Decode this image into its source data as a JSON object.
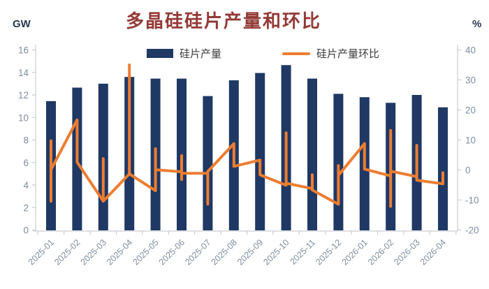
{
  "header": {
    "title": "多晶硅硅片产量和环比",
    "left_unit": "GW",
    "right_unit": "%"
  },
  "legend": {
    "bar_label": "硅片产量",
    "line_label": "硅片产量环比"
  },
  "colors": {
    "bar": "#1F3864",
    "line": "#ED7D31",
    "title": "#933A36",
    "unit_label": "#26374F",
    "legend_text": "#3A3A3A",
    "tick_label": "#7F8DA0",
    "axis_line": "#C9CDD4"
  },
  "chart_data": {
    "type": "bar+line",
    "title": "多晶硅硅片产量和环比",
    "categories": [
      "2025-01",
      "2025-02",
      "2025-03",
      "2025-04",
      "2025-05",
      "2025-06",
      "2025-07",
      "2025-08",
      "2025-09",
      "2025-10",
      "2025-11",
      "2025-12",
      "2026-01",
      "2026-02",
      "2026-03",
      "2026-04"
    ],
    "series": [
      {
        "name": "硅片产量",
        "type": "bar",
        "axis": "left",
        "unit": "GW",
        "values": [
          11.45,
          12.65,
          13.0,
          13.6,
          13.45,
          13.45,
          11.9,
          13.3,
          13.95,
          14.65,
          13.45,
          12.1,
          11.8,
          11.3,
          12.0,
          10.9
        ]
      },
      {
        "name": "硅片产量环比",
        "type": "line",
        "axis": "right",
        "unit": "%",
        "points": [
          [
            1,
            -10.4
          ],
          [
            1,
            9.7
          ],
          [
            1,
            0.1
          ],
          [
            2,
            16.7
          ],
          [
            2,
            2.6
          ],
          [
            3,
            -10.4
          ],
          [
            3,
            3.8
          ],
          [
            3,
            -10.4
          ],
          [
            4,
            -1.3
          ],
          [
            4,
            35.0
          ],
          [
            4,
            -1.3
          ],
          [
            5,
            -6.9
          ],
          [
            5,
            7.1
          ],
          [
            5,
            0.1
          ],
          [
            6,
            -0.6
          ],
          [
            6,
            4.8
          ],
          [
            6,
            -3.2
          ],
          [
            6,
            -1.1
          ],
          [
            7,
            -1.1
          ],
          [
            7,
            -11.4
          ],
          [
            7,
            -0.5
          ],
          [
            8,
            8.8
          ],
          [
            8,
            1.2
          ],
          [
            9,
            3.3
          ],
          [
            9,
            -1.6
          ],
          [
            10,
            -5.1
          ],
          [
            10,
            12.4
          ],
          [
            10,
            -4.4
          ],
          [
            11,
            -6.2
          ],
          [
            11,
            -1.6
          ],
          [
            11,
            -6.7
          ],
          [
            12,
            -11.4
          ],
          [
            12,
            1.5
          ],
          [
            12,
            -1.8
          ],
          [
            13,
            8.8
          ],
          [
            13,
            0.3
          ],
          [
            14,
            -2.0
          ],
          [
            14,
            13.2
          ],
          [
            14,
            -12.1
          ],
          [
            14,
            -0.4
          ],
          [
            15,
            -2.2
          ],
          [
            15,
            8.2
          ],
          [
            15,
            -3.4
          ],
          [
            16,
            -4.6
          ],
          [
            16,
            -0.9
          ]
        ]
      }
    ],
    "left_axis": {
      "min": 0,
      "max": 16,
      "step": 2,
      "unit": "GW",
      "tick_labels": [
        "0",
        "2",
        "4",
        "6",
        "8",
        "10",
        "12",
        "14",
        "16"
      ]
    },
    "right_axis": {
      "min": -20,
      "max": 40,
      "step": 10,
      "unit": "%",
      "tick_labels": [
        "-20",
        "-10",
        "0",
        "10",
        "20",
        "30",
        "40"
      ]
    },
    "grid": false,
    "legend_position": "top-center"
  }
}
